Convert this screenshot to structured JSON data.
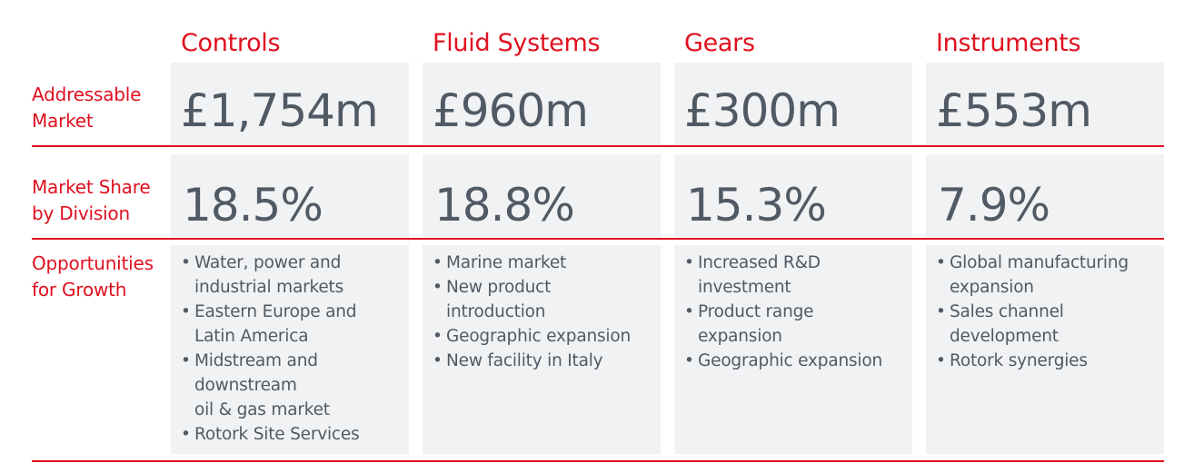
{
  "columns": [
    {
      "name": "Controls",
      "market": "£1,754m",
      "share": "18.5%",
      "opportunities": [
        "Water, power and\nindustrial markets",
        "Eastern Europe and\nLatin America",
        "Midstream and\ndownstream\noil & gas market",
        "Rotork Site Services"
      ]
    },
    {
      "name": "Fluid Systems",
      "market": "£960m",
      "share": "18.8%",
      "opportunities": [
        "Marine market",
        "New product\nintroduction",
        "Geographic expansion",
        "New facility in Italy"
      ]
    },
    {
      "name": "Gears",
      "market": "£300m",
      "share": "15.3%",
      "opportunities": [
        "Increased R&D\ninvestment",
        "Product range\nexpansion",
        "Geographic expansion"
      ]
    },
    {
      "name": "Instruments",
      "market": "£553m",
      "share": "7.9%",
      "opportunities": [
        "Global manufacturing\nexpansion",
        "Sales channel\ndevelopment",
        "Rotork synergies"
      ]
    }
  ],
  "rows": {
    "addressable_market": "Addressable\nMarket",
    "market_share": "Market Share\nby Division",
    "opportunities": "Opportunities\nfor Growth"
  },
  "colors": {
    "accent": "#e0101f",
    "text": "#505a64",
    "panel": "#f1f2f4"
  }
}
